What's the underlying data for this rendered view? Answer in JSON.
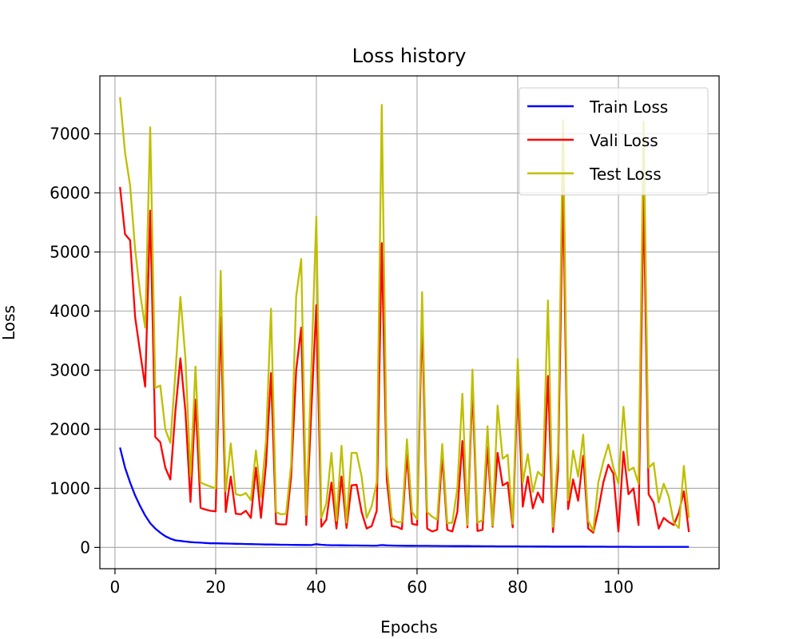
{
  "chart_data": {
    "type": "line",
    "title": "Loss history",
    "xlabel": "Epochs",
    "ylabel": "Loss",
    "xlim": [
      -3,
      120
    ],
    "ylim": [
      -360,
      7980
    ],
    "xticks": [
      0,
      20,
      40,
      60,
      80,
      100
    ],
    "yticks": [
      0,
      1000,
      2000,
      3000,
      4000,
      5000,
      6000,
      7000
    ],
    "grid": true,
    "legend_position": "top-right",
    "series": [
      {
        "name": "Train Loss",
        "color": "#0000ff",
        "values": [
          1690,
          1350,
          1100,
          880,
          700,
          540,
          410,
          320,
          250,
          190,
          150,
          120,
          110,
          100,
          90,
          85,
          80,
          75,
          70,
          70,
          68,
          66,
          64,
          62,
          60,
          58,
          56,
          54,
          52,
          50,
          50,
          48,
          46,
          45,
          44,
          43,
          42,
          41,
          40,
          55,
          45,
          40,
          38,
          37,
          36,
          35,
          34,
          33,
          32,
          32,
          31,
          30,
          40,
          35,
          32,
          30,
          29,
          28,
          28,
          27,
          26,
          26,
          25,
          25,
          24,
          24,
          23,
          23,
          22,
          22,
          21,
          21,
          20,
          20,
          20,
          19,
          19,
          18,
          18,
          18,
          17,
          17,
          17,
          16,
          16,
          16,
          15,
          15,
          15,
          15,
          14,
          14,
          14,
          13,
          13,
          13,
          13,
          12,
          12,
          12,
          12,
          12,
          11,
          11,
          11,
          11,
          10,
          10,
          10,
          10,
          10,
          10,
          10,
          10
        ]
      },
      {
        "name": "Vali Loss",
        "color": "#ff0000",
        "values": [
          6100,
          5300,
          5200,
          3900,
          3300,
          2720,
          5700,
          1870,
          1780,
          1350,
          1150,
          2300,
          3200,
          2300,
          770,
          2500,
          670,
          640,
          620,
          610,
          3900,
          600,
          1200,
          570,
          560,
          620,
          500,
          1350,
          500,
          1400,
          2950,
          400,
          390,
          390,
          1200,
          3000,
          3720,
          380,
          2300,
          4100,
          350,
          470,
          1100,
          320,
          1200,
          330,
          1050,
          1060,
          600,
          320,
          360,
          620,
          5150,
          1150,
          360,
          350,
          310,
          1580,
          400,
          380,
          3900,
          320,
          270,
          300,
          1550,
          300,
          270,
          600,
          1800,
          340,
          2700,
          280,
          300,
          1700,
          350,
          1600,
          1050,
          1100,
          340,
          2800,
          690,
          1200,
          660,
          930,
          760,
          2900,
          260,
          1300,
          6100,
          650,
          1150,
          790,
          1550,
          320,
          250,
          630,
          1100,
          1400,
          1250,
          270,
          1620,
          900,
          1000,
          380,
          6000,
          900,
          760,
          320,
          500,
          430,
          380,
          590,
          950,
          260
        ]
      },
      {
        "name": "Test Loss",
        "color": "#bfbf00",
        "values": [
          7620,
          6680,
          6130,
          5050,
          4300,
          3720,
          7110,
          2700,
          2740,
          2000,
          1770,
          2950,
          4240,
          3200,
          1200,
          3060,
          1100,
          1060,
          1030,
          1000,
          4680,
          950,
          1760,
          900,
          880,
          920,
          800,
          1640,
          850,
          1800,
          4040,
          600,
          560,
          570,
          1400,
          4250,
          4880,
          550,
          3000,
          5600,
          500,
          750,
          1600,
          450,
          1720,
          420,
          1600,
          1600,
          1200,
          500,
          700,
          1100,
          7490,
          1400,
          500,
          430,
          430,
          1830,
          600,
          480,
          4320,
          600,
          520,
          470,
          1750,
          410,
          420,
          1000,
          2600,
          380,
          3010,
          420,
          460,
          2050,
          370,
          2400,
          1500,
          1570,
          400,
          3190,
          1100,
          1580,
          940,
          1280,
          1200,
          4180,
          350,
          1630,
          7230,
          800,
          1640,
          1200,
          1910,
          450,
          280,
          1100,
          1450,
          1740,
          1350,
          1080,
          2380,
          1300,
          1350,
          1080,
          7200,
          1350,
          1430,
          760,
          1080,
          860,
          420,
          330,
          1380,
          500
        ]
      }
    ]
  }
}
